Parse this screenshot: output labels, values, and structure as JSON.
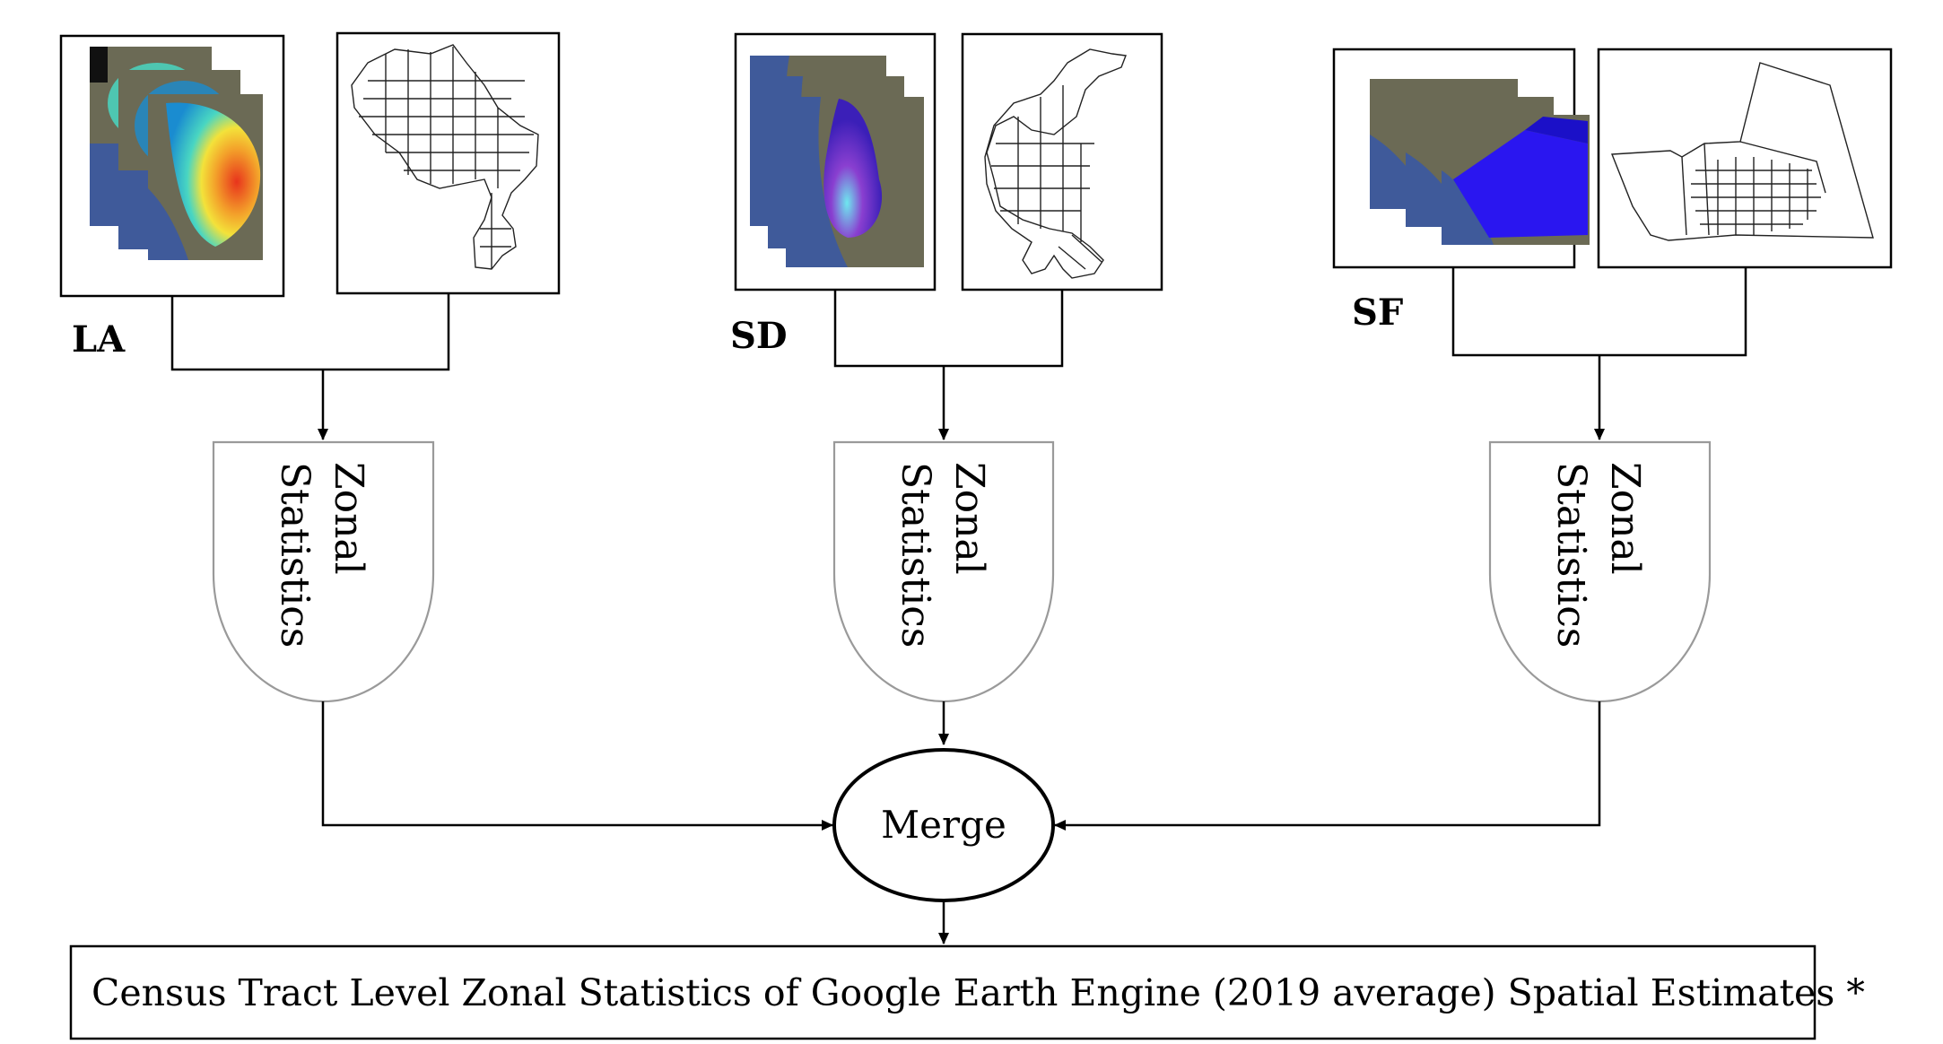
{
  "regions": [
    {
      "label": "LA",
      "raster_colors": [
        "#1a8cd0",
        "#49d6c2",
        "#f3e23a",
        "#e8341c"
      ]
    },
    {
      "label": "SD",
      "raster_colors": [
        "#4b2bd2",
        "#8a3fd0",
        "#5fd9e6"
      ]
    },
    {
      "label": "SF",
      "raster_colors": [
        "#2a16f0",
        "#1b10c8"
      ]
    }
  ],
  "process": {
    "line1": "Zonal",
    "line2": "Statistics"
  },
  "merge": {
    "label": "Merge"
  },
  "output": {
    "label": "Census Tract Level Zonal Statistics of Google Earth Engine (2019 average) Spatial Estimates *"
  },
  "colors": {
    "ocean": "#3f5a9a",
    "land": "#6b6a55",
    "shape_outline": "#9a9a9a"
  }
}
